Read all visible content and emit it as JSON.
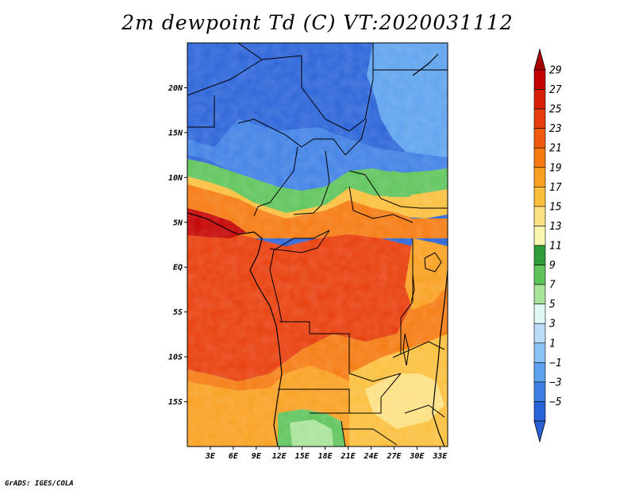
{
  "title": "2m dewpoint Td (C) VT:2020031112",
  "credit": "GrADS: IGES/COLA",
  "map": {
    "lon_range": [
      0,
      34
    ],
    "lat_range": [
      -20,
      25
    ],
    "lon_ticks": [
      "3E",
      "6E",
      "9E",
      "12E",
      "15E",
      "18E",
      "21E",
      "24E",
      "27E",
      "30E",
      "33E"
    ],
    "lat_ticks": [
      "20N",
      "15N",
      "10N",
      "5N",
      "EQ",
      "5S",
      "10S",
      "15S"
    ]
  },
  "colorbar": {
    "levels": [
      "29",
      "27",
      "25",
      "23",
      "21",
      "19",
      "17",
      "15",
      "13",
      "11",
      "9",
      "7",
      "5",
      "3",
      "1",
      "−1",
      "−3",
      "−5"
    ],
    "colors": [
      "#c40000",
      "#d81e05",
      "#e83d0a",
      "#f05a0f",
      "#f57a10",
      "#f9a020",
      "#fbbf3c",
      "#fde082",
      "#f7f7b0",
      "#2f9e3a",
      "#5ec45a",
      "#a8e39a",
      "#e0f7f5",
      "#bcdcf9",
      "#8cc3f6",
      "#5da2ee",
      "#3f80e5",
      "#2a63d8"
    ],
    "arrow_top": "#a80000",
    "arrow_bottom": "#2a5fd5"
  }
}
